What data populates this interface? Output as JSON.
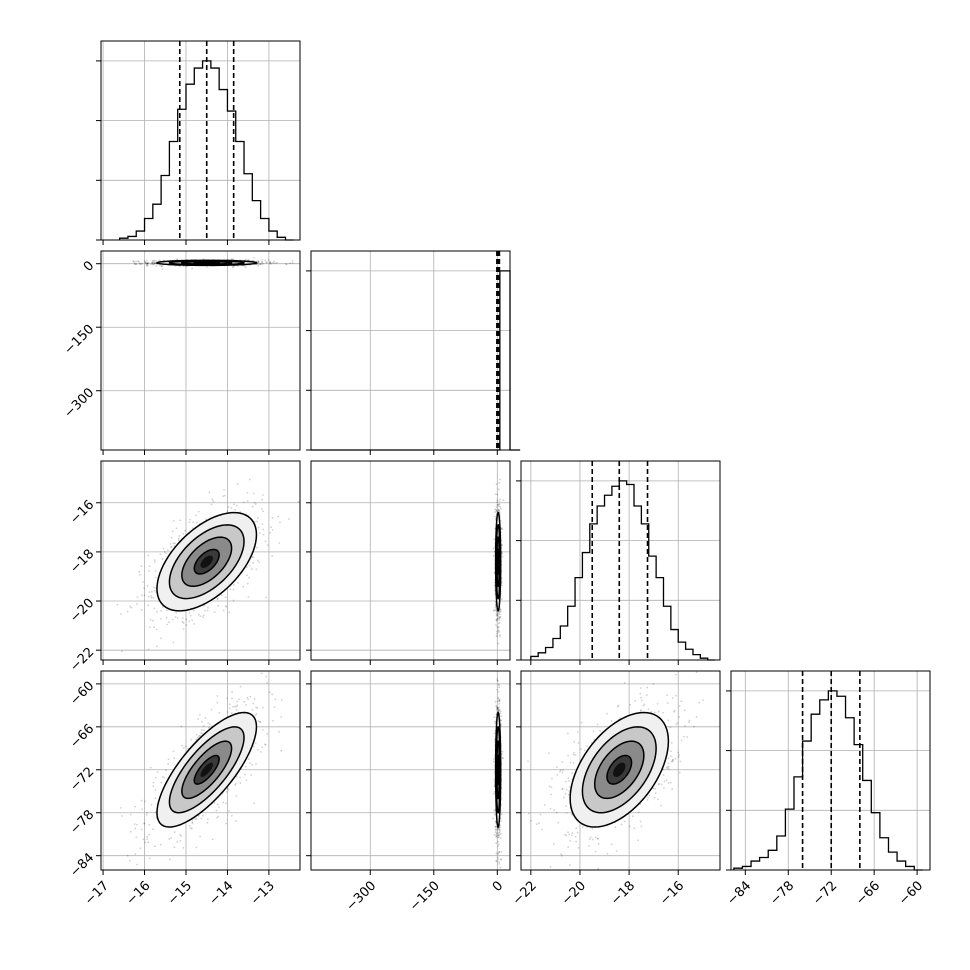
{
  "chart_data": {
    "type": "corner",
    "title": "",
    "parameters": [
      "",
      "",
      "",
      ""
    ],
    "grid": true,
    "ticks": [
      {
        "values": [
          -17,
          -16,
          -15,
          -14,
          -13
        ],
        "labels": [
          "−17",
          "−16",
          "−15",
          "−14",
          "−13"
        ],
        "range": [
          -17.05,
          -12.25
        ]
      },
      {
        "values": [
          -300,
          -150,
          0
        ],
        "labels": [
          "−300",
          "−150",
          "0"
        ],
        "range": [
          -440,
          30
        ]
      },
      {
        "values": [
          -22,
          -20,
          -18,
          -16
        ],
        "labels": [
          "−22",
          "−20",
          "−18",
          "−16"
        ],
        "range": [
          -22.4,
          -14.3
        ]
      },
      {
        "values": [
          -84,
          -78,
          -72,
          -66,
          -60
        ],
        "labels": [
          "−84",
          "−78",
          "−72",
          "−66",
          "−60"
        ],
        "range": [
          -86,
          -58.2
        ]
      }
    ],
    "marginals": [
      {
        "param": 0,
        "mean": -14.5,
        "sd": 0.6,
        "quantiles": [
          -15.15,
          -14.5,
          -13.85
        ],
        "bins": [
          -16.6,
          -16.4,
          -16.2,
          -16.0,
          -15.8,
          -15.6,
          -15.4,
          -15.2,
          -15.0,
          -14.8,
          -14.6,
          -14.4,
          -14.2,
          -14.0,
          -13.8,
          -13.6,
          -13.4,
          -13.2,
          -13.0,
          -12.8,
          -12.6
        ],
        "counts": [
          0.01,
          0.02,
          0.05,
          0.12,
          0.2,
          0.36,
          0.55,
          0.73,
          0.87,
          0.96,
          1.0,
          0.96,
          0.84,
          0.72,
          0.55,
          0.37,
          0.22,
          0.12,
          0.05,
          0.015,
          0.0
        ]
      },
      {
        "param": 1,
        "mean": 2,
        "sd": 3,
        "quantiles": [
          -1,
          2,
          5
        ],
        "bins": [
          -440,
          6,
          30
        ],
        "counts": [
          0,
          1.0,
          0.0
        ]
      },
      {
        "param": 2,
        "mean": -18.4,
        "sd": 1.0,
        "quantiles": [
          -19.5,
          -18.4,
          -17.25
        ],
        "bins": [
          -22.0,
          -21.7,
          -21.4,
          -21.1,
          -20.8,
          -20.5,
          -20.2,
          -19.9,
          -19.6,
          -19.3,
          -19.0,
          -18.7,
          -18.4,
          -18.1,
          -17.8,
          -17.5,
          -17.2,
          -16.9,
          -16.6,
          -16.3,
          -16.0,
          -15.7,
          -15.4,
          -15.1,
          -14.8
        ],
        "counts": [
          0.02,
          0.04,
          0.07,
          0.12,
          0.19,
          0.3,
          0.46,
          0.6,
          0.76,
          0.86,
          0.92,
          0.97,
          1.0,
          0.98,
          0.86,
          0.76,
          0.58,
          0.46,
          0.3,
          0.17,
          0.1,
          0.06,
          0.03,
          0.01,
          0.0
        ]
      },
      {
        "param": 3,
        "mean": -72,
        "sd": 4,
        "quantiles": [
          -76,
          -72,
          -68
        ],
        "bins": [
          -85.6,
          -84.4,
          -83.2,
          -82.0,
          -80.8,
          -79.6,
          -78.4,
          -77.2,
          -76.0,
          -74.8,
          -73.6,
          -72.4,
          -71.2,
          -70.0,
          -68.8,
          -67.6,
          -66.4,
          -65.2,
          -64.0,
          -62.8,
          -61.6,
          -60.4
        ],
        "counts": [
          0.01,
          0.02,
          0.05,
          0.07,
          0.11,
          0.19,
          0.34,
          0.52,
          0.72,
          0.87,
          0.95,
          1.0,
          0.97,
          0.85,
          0.7,
          0.5,
          0.32,
          0.18,
          0.1,
          0.05,
          0.02,
          0.0
        ]
      }
    ],
    "joints": [
      {
        "row": 1,
        "col": 0,
        "mean": [
          -14.5,
          2
        ],
        "sd": [
          0.6,
          3
        ],
        "rho": 0.0
      },
      {
        "row": 2,
        "col": 0,
        "mean": [
          -14.5,
          -18.4
        ],
        "sd": [
          0.6,
          1.0
        ],
        "rho": 0.55
      },
      {
        "row": 2,
        "col": 1,
        "mean": [
          2,
          -18.4
        ],
        "sd": [
          3,
          1.0
        ],
        "rho": 0.0
      },
      {
        "row": 3,
        "col": 0,
        "mean": [
          -14.5,
          -72
        ],
        "sd": [
          0.6,
          4
        ],
        "rho": 0.75
      },
      {
        "row": 3,
        "col": 1,
        "mean": [
          2,
          -72
        ],
        "sd": [
          3,
          4
        ],
        "rho": 0.0
      },
      {
        "row": 3,
        "col": 2,
        "mean": [
          -18.4,
          -72
        ],
        "sd": [
          1.0,
          4
        ],
        "rho": 0.5
      }
    ],
    "contour_levels_sigma": [
      0.5,
      1.0,
      1.5,
      2.0
    ]
  }
}
